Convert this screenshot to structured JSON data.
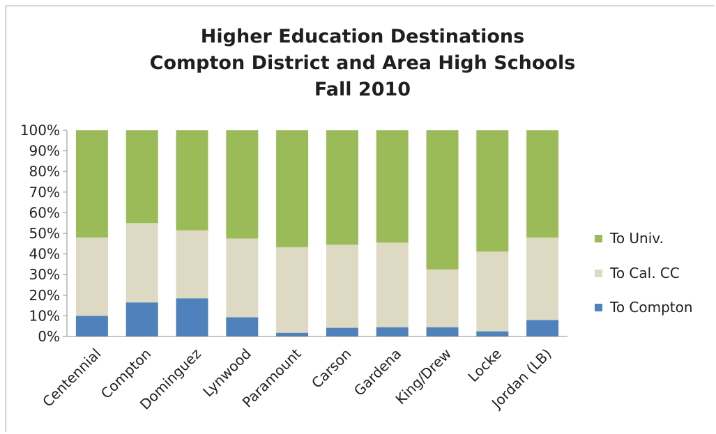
{
  "title_lines": [
    "Higher Education Destinations",
    "Compton District and Area High Schools",
    "Fall 2010"
  ],
  "colors": {
    "univ": "#9bbb59",
    "calcc": "#ddd9c3",
    "compton": "#4f81bd",
    "grid": "#8c8c8c"
  },
  "chart_data": {
    "type": "bar",
    "stacked": true,
    "categories": [
      "Centennial",
      "Compton",
      "Dominguez",
      "Lynwood",
      "Paramount",
      "Carson",
      "Gardena",
      "King/Drew",
      "Locke",
      "Jordan (LB)"
    ],
    "series": [
      {
        "name": "To Compton",
        "values": [
          10,
          16.5,
          18.5,
          9.3,
          1.8,
          4.2,
          4.5,
          4.5,
          2.5,
          8
        ]
      },
      {
        "name": "To Cal. CC",
        "values": [
          38,
          38.5,
          33,
          38.2,
          41.5,
          40.3,
          41,
          28,
          38.7,
          40
        ]
      },
      {
        "name": "To Univ.",
        "values": [
          52,
          45,
          48.5,
          52.5,
          56.7,
          55.5,
          54.5,
          67.5,
          58.8,
          52
        ]
      }
    ],
    "y_ticks": [
      "0%",
      "10%",
      "20%",
      "30%",
      "40%",
      "50%",
      "60%",
      "70%",
      "80%",
      "90%",
      "100%"
    ],
    "ylim": [
      0,
      100
    ],
    "legend": [
      "To Univ.",
      "To Cal. CC",
      "To Compton"
    ],
    "legend_position": "right",
    "grid": false
  }
}
